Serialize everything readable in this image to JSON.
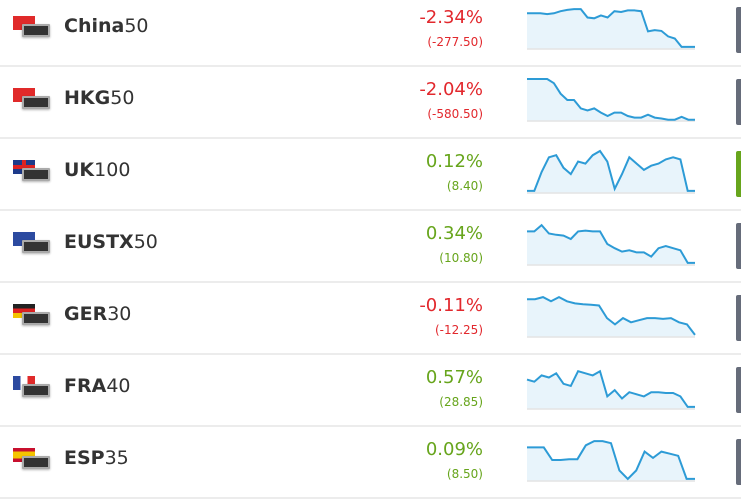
{
  "colors": {
    "negative": "#e2282d",
    "positive": "#67a51c",
    "line": "#2d9bd6",
    "fill": "#e8f4fb",
    "side_neutral": "#666c7a",
    "side_active": "#67a51c"
  },
  "instruments": [
    {
      "code": "China",
      "suffix": "50",
      "flag": "china-flag",
      "change_pct": "-2.34%",
      "change_abs": "(-277.50)",
      "direction": "negative",
      "side": "neutral",
      "sparkline": [
        0.85,
        0.85,
        0.85,
        0.83,
        0.85,
        0.9,
        0.93,
        0.95,
        0.95,
        0.75,
        0.73,
        0.8,
        0.75,
        0.9,
        0.88,
        0.92,
        0.92,
        0.9,
        0.42,
        0.45,
        0.43,
        0.3,
        0.25,
        0.05,
        0.05,
        0.05
      ]
    },
    {
      "code": "HKG",
      "suffix": "50",
      "flag": "hong-kong-flag",
      "change_pct": "-2.04%",
      "change_abs": "(-580.50)",
      "direction": "negative",
      "side": "neutral",
      "sparkline": [
        1,
        1,
        1,
        1,
        0.9,
        0.65,
        0.5,
        0.5,
        0.3,
        0.25,
        0.3,
        0.2,
        0.12,
        0.2,
        0.2,
        0.12,
        0.08,
        0.08,
        0.15,
        0.08,
        0.06,
        0.03,
        0.03,
        0.1,
        0.03,
        0.03
      ]
    },
    {
      "code": "UK",
      "suffix": "100",
      "flag": "uk-flag",
      "change_pct": "0.12%",
      "change_abs": "(8.40)",
      "direction": "positive",
      "side": "active",
      "sparkline": [
        0.05,
        0.05,
        0.5,
        0.85,
        0.9,
        0.6,
        0.45,
        0.75,
        0.7,
        0.9,
        1,
        0.75,
        0.1,
        0.45,
        0.85,
        0.7,
        0.55,
        0.65,
        0.7,
        0.8,
        0.85,
        0.8,
        0.05,
        0.05
      ]
    },
    {
      "code": "EUSTX",
      "suffix": "50",
      "flag": "eu-flag",
      "change_pct": "0.34%",
      "change_abs": "(10.80)",
      "direction": "positive",
      "side": "neutral",
      "sparkline": [
        0.8,
        0.8,
        0.95,
        0.75,
        0.72,
        0.7,
        0.62,
        0.8,
        0.82,
        0.8,
        0.8,
        0.5,
        0.4,
        0.32,
        0.35,
        0.3,
        0.3,
        0.2,
        0.4,
        0.45,
        0.4,
        0.35,
        0.05,
        0.05
      ]
    },
    {
      "code": "GER",
      "suffix": "30",
      "flag": "germany-flag",
      "change_pct": "-0.11%",
      "change_abs": "(-12.25)",
      "direction": "negative",
      "side": "neutral",
      "sparkline": [
        0.9,
        0.9,
        0.95,
        0.85,
        0.95,
        0.85,
        0.8,
        0.78,
        0.77,
        0.75,
        0.45,
        0.3,
        0.45,
        0.35,
        0.4,
        0.45,
        0.45,
        0.43,
        0.45,
        0.35,
        0.3,
        0.05
      ]
    },
    {
      "code": "FRA",
      "suffix": "40",
      "flag": "france-flag",
      "change_pct": "0.57%",
      "change_abs": "(28.85)",
      "direction": "positive",
      "side": "neutral",
      "sparkline": [
        0.7,
        0.65,
        0.8,
        0.75,
        0.85,
        0.6,
        0.55,
        0.9,
        0.85,
        0.8,
        0.9,
        0.3,
        0.45,
        0.25,
        0.4,
        0.35,
        0.3,
        0.4,
        0.4,
        0.38,
        0.38,
        0.3,
        0.05,
        0.05
      ]
    },
    {
      "code": "ESP",
      "suffix": "35",
      "flag": "spain-flag",
      "change_pct": "0.09%",
      "change_abs": "(8.50)",
      "direction": "positive",
      "side": "neutral",
      "sparkline": [
        0.8,
        0.8,
        0.8,
        0.5,
        0.5,
        0.52,
        0.52,
        0.85,
        0.95,
        0.95,
        0.9,
        0.25,
        0.05,
        0.25,
        0.7,
        0.55,
        0.7,
        0.65,
        0.6,
        0.05,
        0.05
      ]
    }
  ]
}
